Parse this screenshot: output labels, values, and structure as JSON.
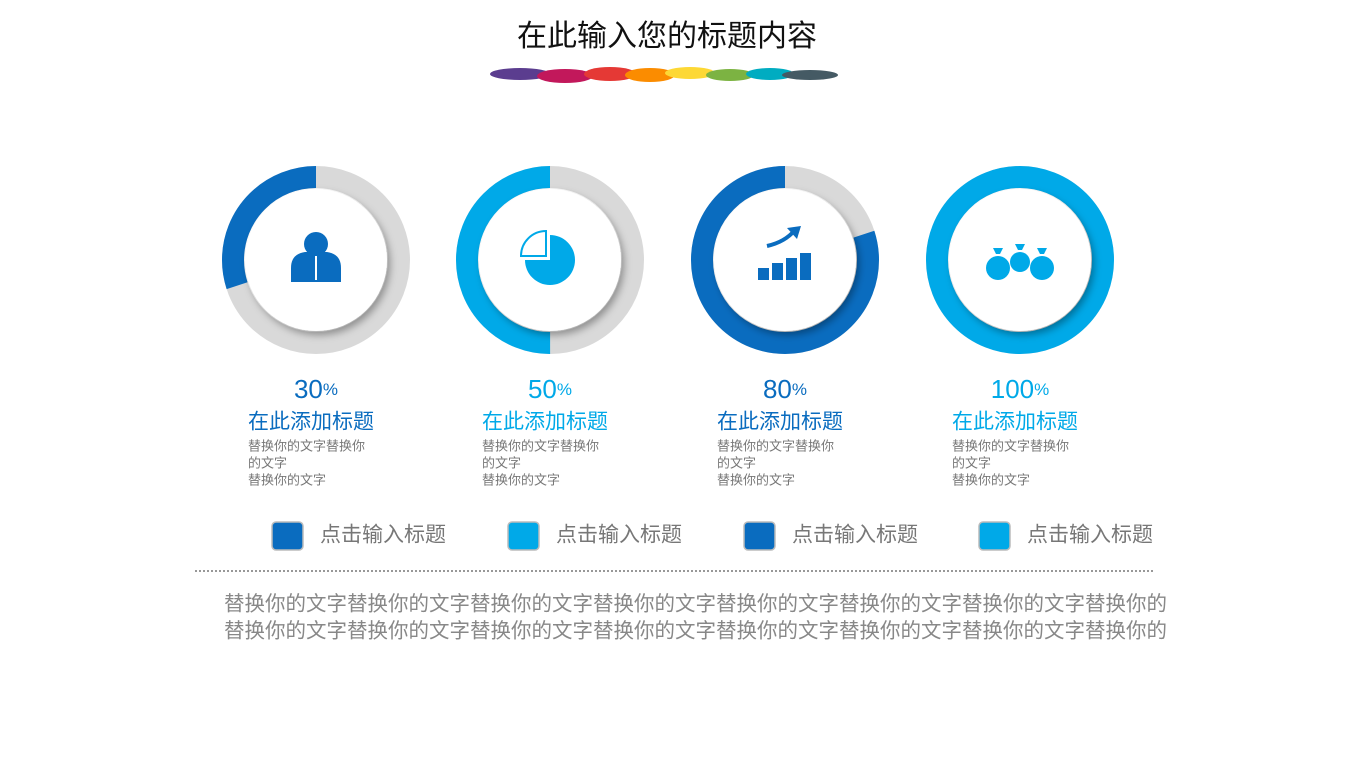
{
  "title": "在此输入您的标题内容",
  "items": [
    {
      "value": 30,
      "value_label": "30%",
      "heading": "在此添加标题",
      "lines": [
        "替换你的文字替换你",
        "的文字",
        "替换你的文字"
      ],
      "color": "#0a6cbf"
    },
    {
      "value": 50,
      "value_label": "50%",
      "heading": "在此添加标题",
      "lines": [
        "替换你的文字替换你",
        "的文字",
        "替换你的文字"
      ],
      "color": "#00a9e8"
    },
    {
      "value": 80,
      "value_label": "80%",
      "heading": "在此添加标题",
      "lines": [
        "替换你的文字替换你",
        "的文字",
        "替换你的文字"
      ],
      "color": "#0a6cbf"
    },
    {
      "value": 100,
      "value_label": "100%",
      "heading": "在此添加标题",
      "lines": [
        "替换你的文字替换你",
        "的文字",
        "替换你的文字"
      ],
      "color": "#00a9e8"
    }
  ],
  "legend": [
    "点击输入标题",
    "点击输入标题",
    "点击输入标题",
    "点击输入标题"
  ],
  "body": [
    "替换你的文字替换你的文字替换你的文字替换你的文字替换你的文字替换你的文字替换你的文字替换你的",
    "替换你的文字替换你的文字替换你的文字替换你的文字替换你的文字替换你的文字替换你的文字替换你的"
  ]
}
